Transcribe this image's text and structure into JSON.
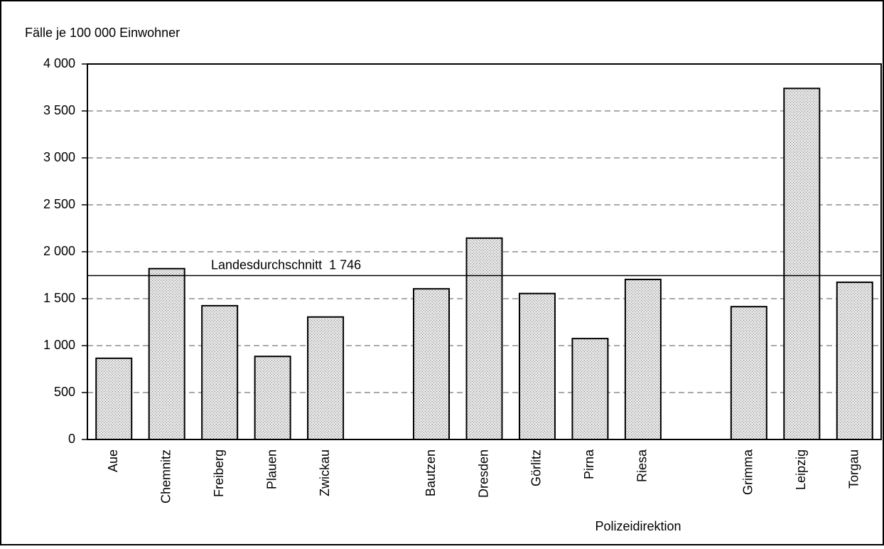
{
  "chart_data": {
    "type": "bar",
    "y_axis_label": "Fälle je 100 000 Einwohner",
    "x_axis_label": "Polizeidirektion",
    "categories": [
      "Aue",
      "Chemnitz",
      "Freiberg",
      "Plauen",
      "Zwickau",
      null,
      "Bautzen",
      "Dresden",
      "Görlitz",
      "Pirna",
      "Riesa",
      null,
      "Grimma",
      "Leipzig",
      "Torgau"
    ],
    "values": [
      865,
      1820,
      1425,
      885,
      1305,
      null,
      1605,
      2145,
      1555,
      1075,
      1705,
      null,
      1415,
      3740,
      1675
    ],
    "color": "#e4e4e4",
    "ylim": [
      0,
      4000
    ],
    "yticks": [
      0,
      500,
      {
        "value": 1000,
        "label": "1 000"
      },
      {
        "value": 1500,
        "label": "1 500"
      },
      {
        "value": 2000,
        "label": "2 000"
      },
      {
        "value": 2500,
        "label": "2 500"
      },
      {
        "value": 3000,
        "label": "3 000"
      },
      {
        "value": 3500,
        "label": "3 500"
      },
      {
        "value": 4000,
        "label": "4 000"
      }
    ],
    "grid": true,
    "reference_line": {
      "value": 1746,
      "label": "Landesdurchschnitt  1 746"
    }
  }
}
